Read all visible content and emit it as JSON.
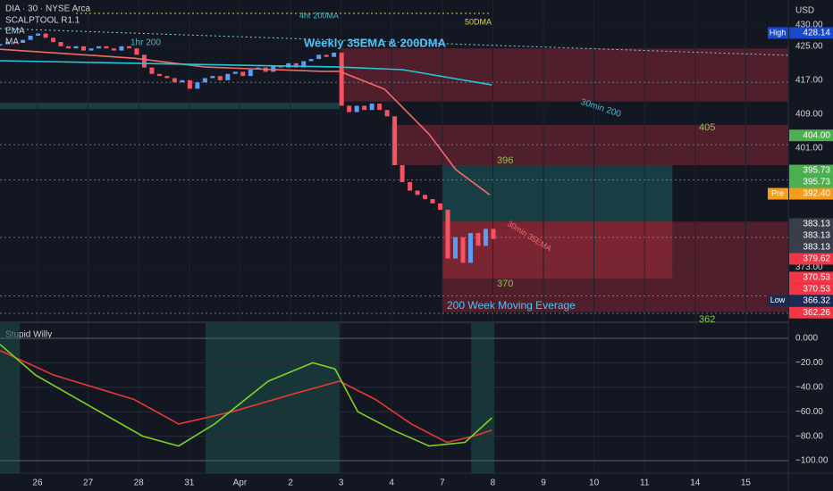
{
  "chart_data": {
    "type": "candlestick",
    "title": "DIA · 30 · NYSE Arca",
    "indicators_legend": [
      "SCALPTOOL R1.1",
      "EMA",
      "MA"
    ],
    "currency": "USD",
    "annotations": {
      "ma4h": "4hr 200MA",
      "dma50": "50DMA",
      "ma1h": "1hr 200",
      "weekly": "Weekly 35EMA & 200DMA",
      "ma30": "30min 200",
      "ema30": "30min 35EMA",
      "wma200": "200 Week Moving Everage",
      "l405": "405",
      "l396": "396",
      "l370": "370",
      "l362": "362"
    },
    "xlim": [
      -0.742,
      14.841
    ],
    "xticks": [
      {
        "value": 0,
        "label": "26"
      },
      {
        "value": 1,
        "label": "27"
      },
      {
        "value": 2,
        "label": "28"
      },
      {
        "value": 3,
        "label": "31"
      },
      {
        "value": 4,
        "label": "Apr"
      },
      {
        "value": 5,
        "label": "2"
      },
      {
        "value": 6,
        "label": "3"
      },
      {
        "value": 7,
        "label": "4"
      },
      {
        "value": 8,
        "label": "7"
      },
      {
        "value": 9,
        "label": "8"
      },
      {
        "value": 10,
        "label": "9"
      },
      {
        "value": 11,
        "label": "10"
      },
      {
        "value": 12,
        "label": "11"
      },
      {
        "value": 13,
        "label": "14"
      },
      {
        "value": 14,
        "label": "15"
      }
    ],
    "ylim": [
      360.2,
      435.9
    ],
    "yticks": [
      {
        "value": 430,
        "label": "430.00"
      },
      {
        "value": 425,
        "label": "425.00"
      },
      {
        "value": 417,
        "label": "417.00"
      },
      {
        "value": 409,
        "label": "409.00"
      },
      {
        "value": 401,
        "label": "401.00"
      },
      {
        "value": 373,
        "label": "373.00"
      }
    ],
    "up_color": "#5b9cf6",
    "down_color": "#f7525f",
    "candles": {
      "x": [
        -0.74,
        -0.59,
        -0.44,
        -0.29,
        -0.14,
        0.01,
        0.16,
        0.31,
        0.46,
        0.61,
        0.76,
        0.91,
        1.06,
        1.21,
        1.36,
        1.51,
        1.66,
        1.81,
        1.96,
        2.11,
        2.26,
        2.41,
        2.56,
        2.71,
        2.86,
        3.01,
        3.16,
        3.31,
        3.46,
        3.61,
        3.76,
        3.91,
        4.06,
        4.21,
        4.36,
        4.51,
        4.66,
        4.81,
        4.96,
        5.11,
        5.26,
        5.41,
        5.56,
        5.71,
        5.86,
        6.01,
        6.16,
        6.31,
        6.46,
        6.61,
        6.76,
        6.91,
        7.06,
        7.21,
        7.36,
        7.51,
        7.66,
        7.81,
        7.96,
        8.11,
        8.26,
        8.41,
        8.56,
        8.71,
        8.86,
        9.01
      ],
      "close": [
        425.5,
        426,
        425.8,
        426.5,
        427.5,
        428,
        427,
        426,
        425,
        424.5,
        425,
        424,
        424.5,
        425,
        424.5,
        424,
        425,
        424.5,
        423,
        420,
        418.5,
        418,
        417.5,
        416.5,
        417,
        415,
        416.5,
        417.5,
        418,
        417,
        418.5,
        419,
        418,
        419.5,
        420,
        419,
        420.5,
        420,
        421,
        420,
        421.5,
        422,
        423,
        422.5,
        423.5,
        411,
        409.5,
        411,
        410,
        411.5,
        410,
        408.5,
        397,
        393,
        391,
        390,
        389,
        388,
        386.5,
        375,
        380,
        374,
        381,
        378,
        382,
        379.6
      ]
    },
    "ema": {
      "color": "#f16a6a",
      "x": [
        -0.74,
        1.91,
        3.32,
        5.62,
        5.97,
        6.86,
        7.74,
        8.27,
        8.94
      ],
      "values": [
        424.3,
        422.2,
        420.1,
        419.1,
        419.1,
        414.9,
        404.3,
        395.9,
        390.0
      ]
    },
    "ma": {
      "color": "#26c6da",
      "x": [
        -0.74,
        2.79,
        5.97,
        7.21,
        8.98
      ],
      "values": [
        421.6,
        420.8,
        420.1,
        419.5,
        415.9
      ]
    },
    "zones": [
      {
        "x": [
          5.97,
          14.841
        ],
        "range": [
          412,
          424.5
        ],
        "color": "#f23645"
      },
      {
        "x": [
          -0.742,
          5.97
        ],
        "range": [
          410.2,
          411.7
        ],
        "color": "#26a69a"
      },
      {
        "x": [
          6.98,
          14.841
        ],
        "range": [
          397,
          406.5
        ],
        "color": "#f23645"
      },
      {
        "x": [
          8.0,
          12.55
        ],
        "range": [
          383.7,
          397
        ],
        "color": "#26a69a"
      },
      {
        "x": [
          8.0,
          12.55
        ],
        "range": [
          370.3,
          383.7
        ],
        "color": "#f23645"
      },
      {
        "x": [
          8.0,
          14.841
        ],
        "range": [
          362.4,
          383.7
        ],
        "color": "#f23645"
      }
    ],
    "levels": [
      416.5,
      401.8,
      393.5,
      380,
      366.2,
      362.1
    ],
    "price_labels": [
      {
        "value": 428.14,
        "label": "428.14",
        "color": "#1848cc",
        "tag": "High"
      },
      {
        "value": 404.0,
        "label": "404.00",
        "color": "#4caf50"
      },
      {
        "value": 395.73,
        "label": "395.73",
        "color": "#4caf50"
      },
      {
        "value": 395.73,
        "label": "395.73",
        "color": "#4caf50"
      },
      {
        "value": 392.4,
        "label": "392.40",
        "color": "#f89c1c",
        "tag": "Pre"
      },
      {
        "value": 383.13,
        "label": "383.13",
        "color": "#3a3e4a"
      },
      {
        "value": 383.13,
        "label": "383.13",
        "color": "#3a3e4a"
      },
      {
        "value": 383.13,
        "label": "383.13",
        "color": "#3a3e4a"
      },
      {
        "value": 379.62,
        "label": "379.62",
        "color": "#f23645"
      },
      {
        "value": 370.53,
        "label": "370.53",
        "color": "#f23645"
      },
      {
        "value": 370.53,
        "label": "370.53",
        "color": "#f23645"
      },
      {
        "value": 366.32,
        "label": "366.32",
        "color": "#1a2b55",
        "tag": "Low"
      },
      {
        "value": 362.26,
        "label": "362.26",
        "color": "#f23645"
      }
    ],
    "indicator": {
      "name": "Stupid Willy",
      "ylim": [
        -110.2,
        12.4
      ],
      "yticks": [
        {
          "value": 0,
          "label": "0.000"
        },
        {
          "value": -20,
          "label": "−20.00"
        },
        {
          "value": -40,
          "label": "−40.00"
        },
        {
          "value": -60,
          "label": "−60.00"
        },
        {
          "value": -80,
          "label": "−80.00"
        },
        {
          "value": -100,
          "label": "−100.00"
        }
      ],
      "highlights": [
        [
          -0.742,
          -0.35
        ],
        [
          3.32,
          5.97
        ],
        [
          8.57,
          9.03
        ]
      ],
      "highlight_color": "#1d4a47",
      "fast": {
        "color": "#7ed321",
        "x": [
          -0.74,
          -0.04,
          1.02,
          2.08,
          2.79,
          3.5,
          4.56,
          5.44,
          5.88,
          6.33,
          7.03,
          7.74,
          8.45,
          8.98
        ],
        "values": [
          -5,
          -30,
          -55,
          -80,
          -88,
          -70,
          -35,
          -20,
          -25,
          -60,
          -75,
          -88,
          -85,
          -65
        ]
      },
      "slow": {
        "color": "#e53935",
        "x": [
          -0.74,
          0.32,
          1.91,
          2.79,
          3.85,
          5.09,
          5.97,
          6.68,
          7.39,
          8.09,
          8.62,
          8.98
        ],
        "values": [
          -10,
          -30,
          -50,
          -70,
          -60,
          -45,
          -35,
          -50,
          -70,
          -85,
          -80,
          -75
        ]
      }
    }
  }
}
